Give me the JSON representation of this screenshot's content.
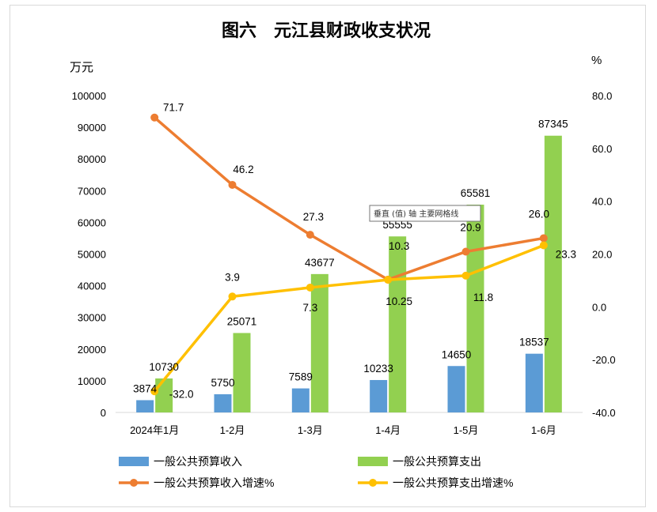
{
  "chart_data": {
    "type": "bar",
    "title": "图六　元江县财政收支状况",
    "left_unit": "万元",
    "right_unit": "%",
    "categories": [
      "2024年1月",
      "1-2月",
      "1-3月",
      "1-4月",
      "1-5月",
      "1-6月"
    ],
    "ylim_left": [
      0,
      100000
    ],
    "ylim_right": [
      -40,
      80
    ],
    "left_ticks": [
      "0",
      "10000",
      "20000",
      "30000",
      "40000",
      "50000",
      "60000",
      "70000",
      "80000",
      "90000",
      "100000"
    ],
    "right_ticks": [
      "-40.0",
      "-20.0",
      "0.0",
      "20.0",
      "40.0",
      "60.0",
      "80.0"
    ],
    "bar_series": [
      {
        "name": "一般公共预算收入",
        "color": "#5b9bd5",
        "values": [
          3874,
          5750,
          7589,
          10233,
          14650,
          18537
        ],
        "labels": [
          "3874",
          "5750",
          "7589",
          "10233",
          "14650",
          "18537"
        ]
      },
      {
        "name": "一般公共预算支出",
        "color": "#92d050",
        "values": [
          10730,
          25071,
          43677,
          55555,
          65581,
          87345
        ],
        "labels": [
          "10730",
          "25071",
          "43677",
          "55555",
          "65581",
          "87345"
        ]
      }
    ],
    "line_series": [
      {
        "name": "一般公共预算收入增速%",
        "color": "#ed7d31",
        "values": [
          71.7,
          46.2,
          27.3,
          10.3,
          20.9,
          26.0
        ],
        "labels": [
          "71.7",
          "46.2",
          "27.3",
          "10.3",
          "20.9",
          "26.0"
        ]
      },
      {
        "name": "一般公共预算支出增速%",
        "color": "#ffc000",
        "values": [
          -32.0,
          3.9,
          7.3,
          10.25,
          11.8,
          23.3
        ],
        "labels": [
          "-32.0",
          "3.9",
          "7.3",
          "10.25",
          "11.8",
          "23.3"
        ]
      }
    ],
    "tooltip": "垂直 (值) 轴 主要网格线",
    "grid": false,
    "legend_position": "bottom"
  }
}
